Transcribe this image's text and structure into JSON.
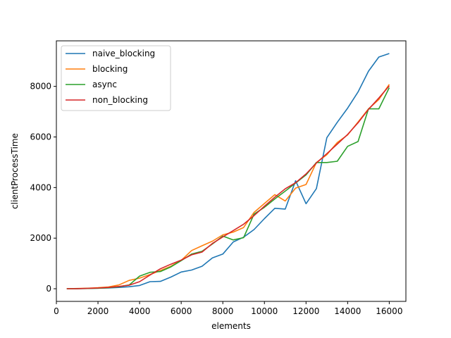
{
  "chart_data": {
    "type": "line",
    "title": "",
    "xlabel": "elements",
    "ylabel": "clientProcessTime",
    "xlim": [
      0,
      16800
    ],
    "ylim": [
      -500,
      9800
    ],
    "x_ticks": [
      0,
      2000,
      4000,
      6000,
      8000,
      10000,
      12000,
      14000,
      16000
    ],
    "y_ticks": [
      0,
      2000,
      4000,
      6000,
      8000
    ],
    "grid": false,
    "legend": "top-left",
    "series": [
      {
        "name": "naive_blocking",
        "color": "#1f77b4",
        "x": [
          500,
          1000,
          1500,
          2000,
          2500,
          3000,
          3500,
          4000,
          4500,
          5000,
          5500,
          6000,
          6500,
          7000,
          7500,
          8000,
          8500,
          9000,
          9500,
          10000,
          10500,
          11000,
          11500,
          12000,
          12500,
          13000,
          13500,
          14000,
          14500,
          15000,
          15500,
          16000
        ],
        "y": [
          0,
          5,
          10,
          20,
          30,
          50,
          80,
          130,
          280,
          290,
          460,
          660,
          740,
          890,
          1220,
          1370,
          1850,
          2040,
          2340,
          2770,
          3180,
          3150,
          4270,
          3360,
          3960,
          5970,
          6580,
          7140,
          7780,
          8600,
          9160,
          9300
        ]
      },
      {
        "name": "blocking",
        "color": "#ff7f0e",
        "x": [
          500,
          1000,
          1500,
          2000,
          2500,
          3000,
          3500,
          4000,
          4500,
          5000,
          5500,
          6000,
          6500,
          7000,
          7500,
          8000,
          8500,
          9000,
          9500,
          10000,
          10500,
          11000,
          11500,
          12000,
          12500,
          13000,
          13500,
          14000,
          14500,
          15000,
          15500,
          16000
        ],
        "y": [
          0,
          10,
          20,
          40,
          70,
          150,
          330,
          420,
          560,
          720,
          890,
          1120,
          1510,
          1700,
          1880,
          2130,
          2240,
          2420,
          3020,
          3370,
          3720,
          3470,
          3980,
          4120,
          4990,
          5300,
          5780,
          6080,
          6590,
          7110,
          7480,
          8080
        ]
      },
      {
        "name": "async",
        "color": "#2ca02c",
        "x": [
          500,
          1000,
          1500,
          2000,
          2500,
          3000,
          3500,
          4000,
          4500,
          5000,
          5500,
          6000,
          6500,
          7000,
          7500,
          8000,
          8500,
          9000,
          9500,
          10000,
          10500,
          11000,
          11500,
          12000,
          12500,
          13000,
          13500,
          14000,
          14500,
          15000,
          15500,
          16000
        ],
        "y": [
          0,
          5,
          10,
          20,
          40,
          80,
          150,
          500,
          650,
          680,
          860,
          1110,
          1370,
          1480,
          1770,
          2080,
          1930,
          2020,
          2950,
          3220,
          3550,
          3860,
          4180,
          4500,
          4990,
          4990,
          5040,
          5630,
          5820,
          7110,
          7110,
          7950
        ]
      },
      {
        "name": "non_blocking",
        "color": "#d62728",
        "x": [
          500,
          1000,
          1500,
          2000,
          2500,
          3000,
          3500,
          4000,
          4500,
          5000,
          5500,
          6000,
          6500,
          7000,
          7500,
          8000,
          8500,
          9000,
          9500,
          10000,
          10500,
          11000,
          11500,
          12000,
          12500,
          13000,
          13500,
          14000,
          14500,
          15000,
          15500,
          16000
        ],
        "y": [
          0,
          5,
          15,
          30,
          50,
          90,
          140,
          280,
          540,
          790,
          970,
          1130,
          1340,
          1450,
          1790,
          2050,
          2300,
          2550,
          2890,
          3260,
          3620,
          3950,
          4190,
          4540,
          4970,
          5340,
          5720,
          6100,
          6560,
          7090,
          7540,
          8020
        ]
      }
    ]
  }
}
